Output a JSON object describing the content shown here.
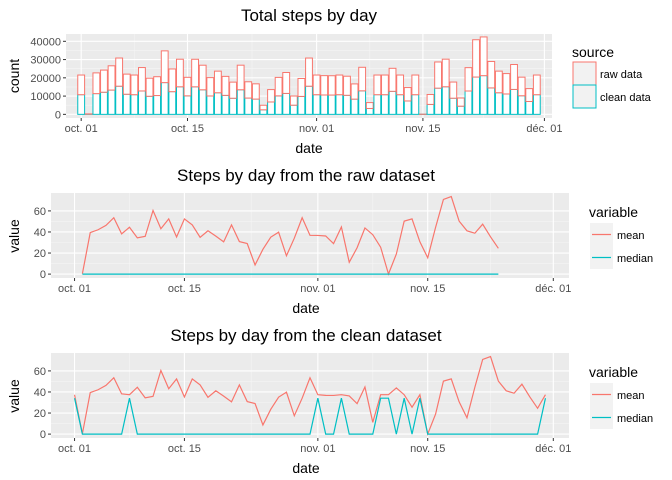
{
  "chart_data": [
    {
      "type": "bar",
      "title": "Total steps by day",
      "xlabel": "date",
      "ylabel": "count",
      "x_range": [
        "2012-09-29",
        "2012-12-02"
      ],
      "ylim": [
        -2000,
        44000
      ],
      "yticks": [
        0,
        10000,
        20000,
        30000,
        40000
      ],
      "xticks": [
        {
          "date": "2012-10-01",
          "label": "oct. 01"
        },
        {
          "date": "2012-10-15",
          "label": "oct. 15"
        },
        {
          "date": "2012-11-01",
          "label": "nov. 01"
        },
        {
          "date": "2012-11-15",
          "label": "nov. 15"
        },
        {
          "date": "2012-12-01",
          "label": "déc. 01"
        }
      ],
      "position": "stack",
      "grid": true,
      "legend": {
        "title": "source",
        "position": "right"
      },
      "start_date": "2012-10-01",
      "series": [
        {
          "name": "raw data",
          "color": "#F8766D",
          "values": [
            10766,
            126,
            11352,
            12116,
            13294,
            15420,
            11015,
            10766,
            12811,
            9900,
            10304,
            17382,
            12426,
            15098,
            10139,
            15084,
            13452,
            10056,
            11829,
            10395,
            8821,
            13460,
            8918,
            8355,
            2492,
            6778,
            10119,
            11458,
            5018,
            9819,
            15414,
            10766,
            10600,
            10571,
            10766,
            10439,
            8334,
            12883,
            3219,
            10766,
            10766,
            12608,
            10765,
            7336,
            10766,
            41,
            5441,
            14339,
            15110,
            8841,
            4472,
            12787,
            20427,
            21194,
            14478,
            11834,
            11162,
            13646,
            10183,
            7047,
            10766
          ]
        },
        {
          "name": "clean data",
          "color": "#00BFC4",
          "values": [
            10766,
            126,
            11352,
            12116,
            13294,
            15420,
            11015,
            10766,
            12811,
            9900,
            10304,
            17382,
            12426,
            15098,
            10139,
            15084,
            13452,
            10056,
            11829,
            10395,
            8821,
            13460,
            8918,
            8355,
            2492,
            6778,
            10119,
            11458,
            5018,
            9819,
            15414,
            10766,
            10600,
            10571,
            10766,
            10439,
            8334,
            12883,
            3219,
            10766,
            10766,
            12608,
            10765,
            7336,
            10766,
            41,
            5441,
            14339,
            15110,
            8841,
            4472,
            12787,
            20427,
            21194,
            14478,
            11834,
            11162,
            13646,
            10183,
            7047,
            10766
          ]
        }
      ]
    },
    {
      "type": "line",
      "title": "Steps by day from the raw dataset",
      "xlabel": "date",
      "ylabel": "value",
      "x_range": [
        "2012-09-28",
        "2012-12-03"
      ],
      "ylim": [
        -3.7,
        77
      ],
      "yticks": [
        0,
        20,
        40,
        60
      ],
      "xticks": [
        {
          "date": "2012-10-01",
          "label": "oct. 01"
        },
        {
          "date": "2012-10-15",
          "label": "oct. 15"
        },
        {
          "date": "2012-11-01",
          "label": "nov. 01"
        },
        {
          "date": "2012-11-15",
          "label": "nov. 15"
        },
        {
          "date": "2012-12-01",
          "label": "déc. 01"
        }
      ],
      "grid": true,
      "legend": {
        "title": "variable",
        "position": "right"
      },
      "start_date": "2012-10-02",
      "series": [
        {
          "name": "mean",
          "color": "#F8766D",
          "values": [
            0.4,
            39.4,
            42.1,
            46.2,
            53.5,
            38.2,
            44.5,
            34.4,
            35.8,
            60.4,
            43.1,
            52.4,
            35.2,
            52.4,
            46.7,
            34.9,
            41.1,
            36.1,
            30.6,
            46.7,
            30.9,
            29.0,
            8.7,
            23.5,
            35.1,
            39.8,
            17.4,
            34.1,
            53.5,
            36.8,
            36.7,
            36.2,
            28.9,
            44.7,
            11.2,
            25.0,
            43.8,
            37.4,
            25.5,
            0.1,
            19.0,
            50.3,
            52.4,
            30.7,
            15.5,
            44.4,
            70.9,
            73.6,
            50.3,
            41.1,
            38.8,
            47.4,
            35.4,
            24.5
          ]
        },
        {
          "name": "median",
          "color": "#00BFC4",
          "values": [
            0,
            0,
            0,
            0,
            0,
            0,
            0,
            0,
            0,
            0,
            0,
            0,
            0,
            0,
            0,
            0,
            0,
            0,
            0,
            0,
            0,
            0,
            0,
            0,
            0,
            0,
            0,
            0,
            0,
            0,
            0,
            0,
            0,
            0,
            0,
            0,
            0,
            0,
            0,
            0,
            0,
            0,
            0,
            0,
            0,
            0,
            0,
            0,
            0,
            0,
            0,
            0,
            0,
            0
          ]
        }
      ]
    },
    {
      "type": "line",
      "title": "Steps by day from the clean dataset",
      "xlabel": "date",
      "ylabel": "value",
      "x_range": [
        "2012-09-28",
        "2012-12-03"
      ],
      "ylim": [
        -3.7,
        77
      ],
      "yticks": [
        0,
        20,
        40,
        60
      ],
      "xticks": [
        {
          "date": "2012-10-01",
          "label": "oct. 01"
        },
        {
          "date": "2012-10-15",
          "label": "oct. 15"
        },
        {
          "date": "2012-11-01",
          "label": "nov. 01"
        },
        {
          "date": "2012-11-15",
          "label": "nov. 15"
        },
        {
          "date": "2012-12-01",
          "label": "déc. 01"
        }
      ],
      "grid": true,
      "legend": {
        "title": "variable",
        "position": "right"
      },
      "start_date": "2012-10-01",
      "series": [
        {
          "name": "mean",
          "color": "#F8766D",
          "values": [
            37.4,
            0.4,
            39.4,
            42.1,
            46.2,
            53.5,
            38.2,
            37.4,
            44.5,
            34.4,
            35.8,
            60.4,
            43.1,
            52.4,
            35.2,
            52.4,
            46.7,
            34.9,
            41.1,
            36.1,
            30.6,
            46.7,
            30.9,
            29.0,
            8.7,
            23.5,
            35.1,
            39.8,
            17.4,
            34.1,
            53.5,
            37.4,
            36.8,
            36.7,
            37.4,
            36.2,
            28.9,
            44.7,
            11.2,
            37.4,
            37.4,
            43.8,
            37.4,
            25.5,
            37.4,
            0.1,
            19.0,
            50.3,
            52.4,
            30.7,
            15.5,
            44.4,
            70.9,
            73.6,
            50.3,
            41.1,
            38.8,
            47.4,
            35.4,
            24.5,
            37.4
          ]
        },
        {
          "name": "median",
          "color": "#00BFC4",
          "values": [
            34.1,
            0,
            0,
            0,
            0,
            0,
            0,
            34.1,
            0,
            0,
            0,
            0,
            0,
            0,
            0,
            0,
            0,
            0,
            0,
            0,
            0,
            0,
            0,
            0,
            0,
            0,
            0,
            0,
            0,
            0,
            0,
            34.1,
            0,
            0,
            34.1,
            0,
            0,
            0,
            0,
            34.1,
            34.1,
            0,
            34.1,
            0,
            34.1,
            0,
            0,
            0,
            0,
            0,
            0,
            0,
            0,
            0,
            0,
            0,
            0,
            0,
            0,
            0,
            34.1
          ]
        }
      ]
    }
  ]
}
